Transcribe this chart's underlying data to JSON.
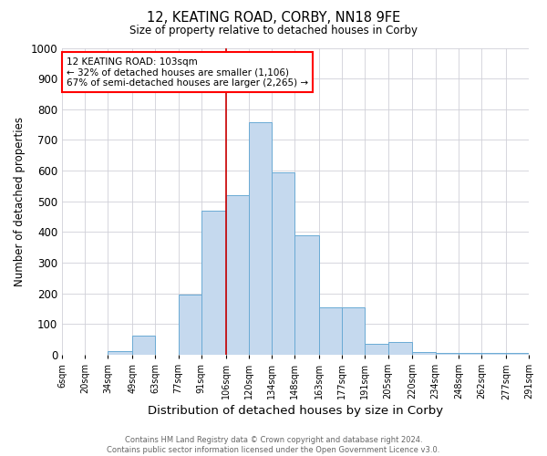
{
  "title_main": "12, KEATING ROAD, CORBY, NN18 9FE",
  "title_sub": "Size of property relative to detached houses in Corby",
  "xlabel": "Distribution of detached houses by size in Corby",
  "ylabel": "Number of detached properties",
  "footnote": "Contains HM Land Registry data © Crown copyright and database right 2024.\nContains public sector information licensed under the Open Government Licence v3.0.",
  "bins": [
    "6sqm",
    "20sqm",
    "34sqm",
    "49sqm",
    "63sqm",
    "77sqm",
    "91sqm",
    "106sqm",
    "120sqm",
    "134sqm",
    "148sqm",
    "163sqm",
    "177sqm",
    "191sqm",
    "205sqm",
    "220sqm",
    "234sqm",
    "248sqm",
    "262sqm",
    "277sqm",
    "291sqm"
  ],
  "bin_edges": [
    6,
    20,
    34,
    49,
    63,
    77,
    91,
    106,
    120,
    134,
    148,
    163,
    177,
    191,
    205,
    220,
    234,
    248,
    262,
    277,
    291
  ],
  "values": [
    0,
    0,
    11,
    63,
    0,
    196,
    470,
    521,
    757,
    595,
    390,
    156,
    156,
    37,
    42,
    10,
    5,
    5,
    5,
    5,
    5
  ],
  "bar_color": "#c5d9ee",
  "bar_edge_color": "#6aaad4",
  "property_line_x": 106,
  "property_label": "12 KEATING ROAD: 103sqm",
  "annotation_line1": "← 32% of detached houses are smaller (1,106)",
  "annotation_line2": "67% of semi-detached houses are larger (2,265) →",
  "annotation_box_color": "white",
  "annotation_box_edge_color": "red",
  "vline_color": "#cc0000",
  "ylim": [
    0,
    1000
  ],
  "yticks": [
    0,
    100,
    200,
    300,
    400,
    500,
    600,
    700,
    800,
    900,
    1000
  ],
  "background_color": "white",
  "grid_color": "#d0d0d8"
}
